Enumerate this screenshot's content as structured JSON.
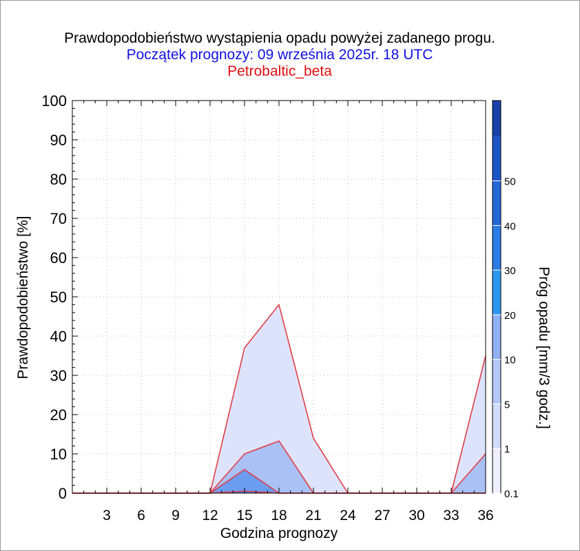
{
  "titles": {
    "line1": "Prawdopodobieństwo wystąpienia opadu powyżej zadanego progu.",
    "line2": "Początek prognozy: 09 września 2025r. 18 UTC",
    "line3": "Petrobaltic_beta",
    "line2_color": "#1010e0",
    "line3_color": "#e01010"
  },
  "chart_data": {
    "type": "area",
    "xlabel": "Godzina prognozy",
    "ylabel": "Prawdopodobieństwo [%]",
    "colorbar_label": "Próg opadu [mm/3 godz.]",
    "xlim": [
      0,
      36
    ],
    "ylim": [
      0,
      100
    ],
    "x_ticks": [
      3,
      6,
      9,
      12,
      15,
      18,
      21,
      24,
      27,
      30,
      33,
      36
    ],
    "y_ticks": [
      0,
      10,
      20,
      30,
      40,
      50,
      60,
      70,
      80,
      90,
      100
    ],
    "grid": true,
    "x": [
      0,
      3,
      6,
      9,
      12,
      15,
      18,
      21,
      24,
      27,
      30,
      33,
      36
    ],
    "series": [
      {
        "threshold": "0.1",
        "color": "#dde3fb",
        "values": [
          0,
          0,
          0,
          0,
          0,
          37,
          48,
          14,
          0,
          0,
          0,
          0,
          35
        ]
      },
      {
        "threshold": "1",
        "color": "#a9c1f5",
        "values": [
          0,
          0,
          0,
          0,
          0,
          10,
          13.3,
          0,
          0,
          0,
          0,
          0,
          10
        ]
      },
      {
        "threshold": "5",
        "color": "#6b9cf0",
        "values": [
          0,
          0,
          0,
          0,
          0,
          6,
          0,
          0,
          0,
          0,
          0,
          0,
          0
        ]
      },
      {
        "threshold": "10",
        "color": "#3d7fec",
        "values": [
          0,
          0,
          0,
          0,
          0,
          0.5,
          0,
          0,
          0,
          0,
          0,
          0,
          0
        ]
      }
    ],
    "outline_color": "#e23c46",
    "colorbar": {
      "labels": [
        "0.1",
        "1",
        "5",
        "10",
        "20",
        "30",
        "40",
        "50"
      ],
      "colors": [
        "#eef1fd",
        "#d2dcfa",
        "#b4c7f6",
        "#8fb0f3",
        "#2a96ef",
        "#2a7ce6",
        "#2468d8",
        "#1e55c9",
        "#1840a8"
      ]
    }
  }
}
